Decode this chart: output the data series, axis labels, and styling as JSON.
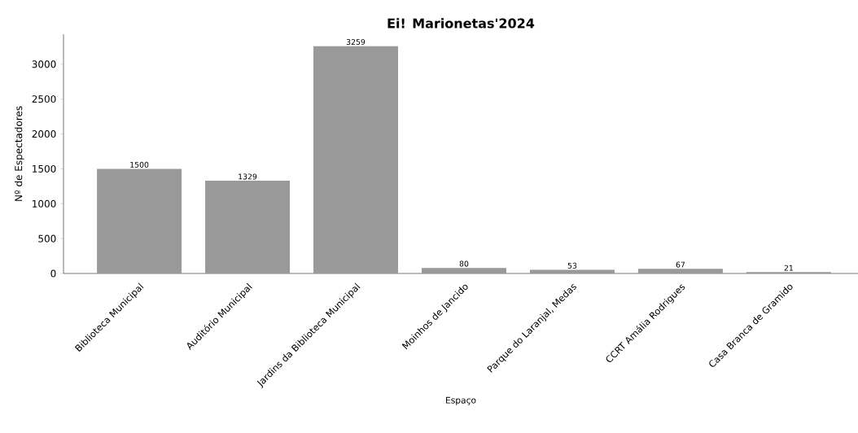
{
  "chart_data": {
    "type": "bar",
    "title": "Ei! Marionetas'2024",
    "xlabel": "Espaço",
    "ylabel": "Nº de Espectadores",
    "categories": [
      "Biblioteca Municipal",
      "Auditório Municipal",
      "Jardins da Biblioteca Municipal",
      "Moinhos de Jancido",
      "Parque do Laranjal, Medas",
      "CCRT Amália Rodrigues",
      "Casa Branca de Gramido"
    ],
    "values": [
      1500,
      1329,
      3259,
      80,
      53,
      67,
      21
    ],
    "color": "#999999",
    "data_labels": true,
    "ylim": [
      0,
      3430
    ],
    "yticks": [
      0,
      500,
      1000,
      1500,
      2000,
      2500,
      3000
    ],
    "grid": false
  }
}
